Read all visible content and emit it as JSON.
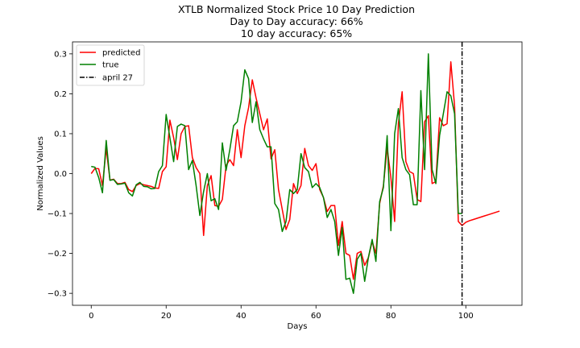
{
  "chart_data": {
    "type": "line",
    "title": "XTLB Normalized Stock Price 10 Day Prediction",
    "subtitles": [
      "Day to Day accuracy: 66%",
      "10 day accuracy: 65%"
    ],
    "xlabel": "Days",
    "ylabel": "Normalized Values",
    "xlim": [
      -5,
      115
    ],
    "ylim": [
      -0.33,
      0.33
    ],
    "xticks": [
      0,
      20,
      40,
      60,
      80,
      100
    ],
    "yticks": [
      -0.3,
      -0.2,
      -0.1,
      0.0,
      0.1,
      0.2,
      0.3
    ],
    "ytick_labels": [
      "−0.3",
      "−0.2",
      "−0.1",
      "0.0",
      "0.1",
      "0.2",
      "0.3"
    ],
    "grid": false,
    "legend_position": "top-left",
    "series": [
      {
        "name": "predicted",
        "color": "#ff0000",
        "x": [
          0,
          1,
          2,
          3,
          4,
          5,
          6,
          7,
          8,
          9,
          10,
          11,
          12,
          13,
          14,
          15,
          16,
          17,
          18,
          19,
          20,
          21,
          22,
          23,
          24,
          25,
          26,
          27,
          28,
          29,
          30,
          31,
          32,
          33,
          34,
          35,
          36,
          37,
          38,
          39,
          40,
          41,
          42,
          43,
          44,
          45,
          46,
          47,
          48,
          49,
          50,
          51,
          52,
          53,
          54,
          55,
          56,
          57,
          58,
          59,
          60,
          61,
          62,
          63,
          64,
          65,
          66,
          67,
          68,
          69,
          70,
          71,
          72,
          73,
          74,
          75,
          76,
          77,
          78,
          79,
          80,
          81,
          82,
          83,
          84,
          85,
          86,
          87,
          88,
          89,
          90,
          91,
          92,
          93,
          94,
          95,
          96,
          97,
          98,
          99,
          100,
          101,
          102,
          103,
          104,
          105,
          106,
          107,
          108,
          109
        ],
        "y": [
          0.0,
          0.013,
          0.012,
          -0.03,
          0.063,
          -0.016,
          -0.014,
          -0.025,
          -0.025,
          -0.022,
          -0.04,
          -0.045,
          -0.03,
          -0.025,
          -0.028,
          -0.03,
          -0.032,
          -0.036,
          -0.037,
          0.005,
          0.017,
          0.134,
          0.09,
          0.035,
          0.1,
          0.118,
          0.12,
          0.04,
          0.015,
          0.0,
          -0.155,
          -0.03,
          -0.005,
          -0.08,
          -0.082,
          -0.065,
          0.02,
          0.035,
          0.02,
          0.11,
          0.04,
          0.12,
          0.165,
          0.235,
          0.19,
          0.15,
          0.11,
          0.137,
          0.037,
          0.06,
          -0.04,
          -0.09,
          -0.14,
          -0.115,
          -0.025,
          -0.05,
          -0.03,
          0.063,
          0.02,
          0.008,
          0.025,
          -0.04,
          -0.06,
          -0.095,
          -0.08,
          -0.08,
          -0.18,
          -0.12,
          -0.2,
          -0.205,
          -0.265,
          -0.2,
          -0.195,
          -0.23,
          -0.21,
          -0.17,
          -0.2,
          -0.075,
          -0.03,
          0.065,
          -0.01,
          -0.12,
          0.125,
          0.205,
          0.03,
          0.005,
          0.0,
          -0.065,
          -0.07,
          0.13,
          0.145,
          -0.025,
          -0.02,
          0.14,
          0.12,
          0.125,
          0.28,
          0.17,
          -0.12,
          -0.13,
          -0.122,
          -0.118,
          -0.115,
          -0.112,
          -0.109,
          -0.106,
          -0.103,
          -0.1,
          -0.097,
          -0.094
        ]
      },
      {
        "name": "true",
        "color": "#008000",
        "x": [
          0,
          1,
          2,
          3,
          4,
          5,
          6,
          7,
          8,
          9,
          10,
          11,
          12,
          13,
          14,
          15,
          16,
          17,
          18,
          19,
          20,
          21,
          22,
          23,
          24,
          25,
          26,
          27,
          28,
          29,
          30,
          31,
          32,
          33,
          34,
          35,
          36,
          37,
          38,
          39,
          40,
          41,
          42,
          43,
          44,
          45,
          46,
          47,
          48,
          49,
          50,
          51,
          52,
          53,
          54,
          55,
          56,
          57,
          58,
          59,
          60,
          61,
          62,
          63,
          64,
          65,
          66,
          67,
          68,
          69,
          70,
          71,
          72,
          73,
          74,
          75,
          76,
          77,
          78,
          79,
          80,
          81,
          82,
          83,
          84,
          85,
          86,
          87,
          88,
          89,
          90,
          91,
          92,
          93,
          94,
          95,
          96,
          97,
          98,
          99
        ],
        "y": [
          0.018,
          0.016,
          -0.01,
          -0.048,
          0.083,
          -0.017,
          -0.015,
          -0.027,
          -0.026,
          -0.024,
          -0.048,
          -0.056,
          -0.028,
          -0.022,
          -0.032,
          -0.033,
          -0.038,
          -0.037,
          0.005,
          0.02,
          0.148,
          0.09,
          0.03,
          0.118,
          0.124,
          0.12,
          0.01,
          0.033,
          -0.03,
          -0.105,
          -0.045,
          0.0,
          -0.068,
          -0.063,
          -0.09,
          0.077,
          0.008,
          0.06,
          0.12,
          0.13,
          0.18,
          0.26,
          0.238,
          0.128,
          0.18,
          0.11,
          0.087,
          0.067,
          0.067,
          -0.075,
          -0.09,
          -0.145,
          -0.12,
          -0.04,
          -0.05,
          -0.04,
          0.05,
          0.015,
          0.005,
          -0.035,
          -0.025,
          -0.035,
          -0.06,
          -0.11,
          -0.09,
          -0.12,
          -0.205,
          -0.135,
          -0.265,
          -0.262,
          -0.3,
          -0.215,
          -0.2,
          -0.27,
          -0.21,
          -0.165,
          -0.22,
          -0.07,
          -0.035,
          0.095,
          -0.143,
          0.1,
          0.163,
          0.04,
          0.01,
          -0.003,
          -0.078,
          -0.078,
          0.208,
          0.01,
          0.3,
          0.01,
          -0.025,
          0.095,
          0.15,
          0.205,
          0.195,
          0.15,
          -0.1,
          -0.1
        ]
      }
    ],
    "vline": {
      "name": "april 27",
      "x": 99,
      "color": "#000000",
      "style": "dash-dot"
    }
  }
}
